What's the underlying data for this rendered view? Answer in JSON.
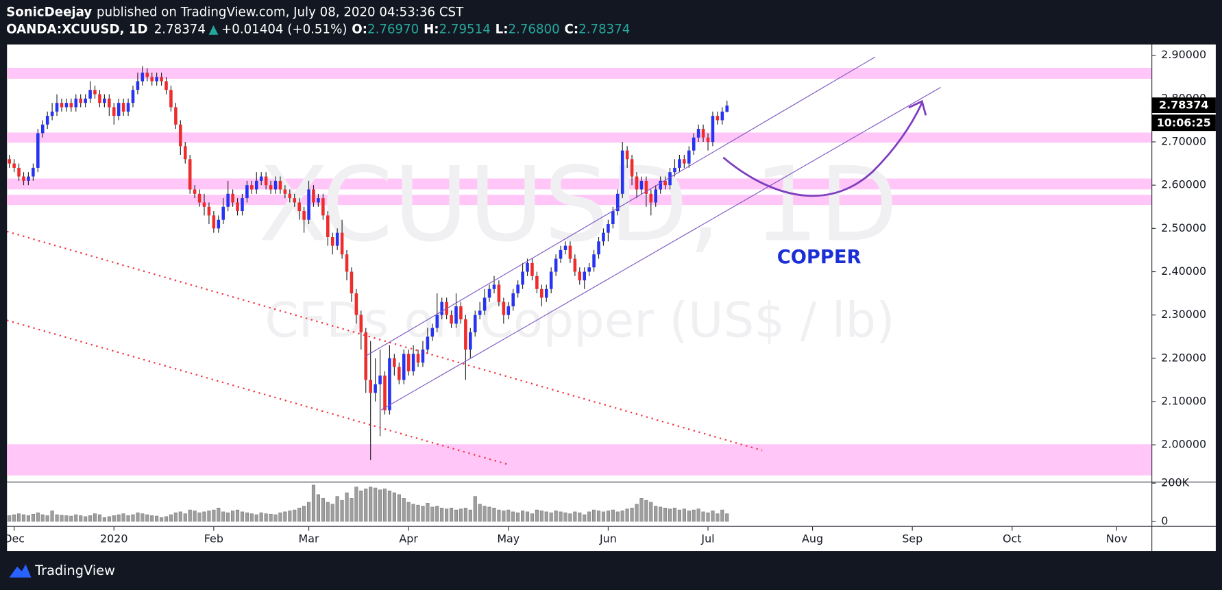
{
  "header": {
    "author": "SonicDeejay",
    "published": "published on TradingView.com, July 08, 2020 04:53:36 CST",
    "symbol": "OANDA:XCUUSD, 1D",
    "last": "2.78374",
    "arrow": "▲",
    "change": "+0.01404 (+0.51%)",
    "o_label": "O:",
    "o": "2.76970",
    "h_label": "H:",
    "h": "2.79514",
    "l_label": "L:",
    "l": "2.76800",
    "c_label": "C:",
    "c": "2.78374"
  },
  "chart_data": {
    "type": "candlestick",
    "watermark": "XCUUSD, 1D",
    "watermark_subtitle": "CFDs on Copper (US$ / lb)",
    "annotation": "COPPER",
    "countdown": "10:06:25",
    "up_color": "#2633f0",
    "down_color": "#ee2c2c",
    "volume_color": "#9e9e9e",
    "open": [
      2.66,
      2.65,
      2.64,
      2.62,
      2.61,
      2.62,
      2.64,
      2.72,
      2.74,
      2.76,
      2.77,
      2.79,
      2.78,
      2.79,
      2.78,
      2.8,
      2.79,
      2.8,
      2.82,
      2.81,
      2.79,
      2.8,
      2.78,
      2.76,
      2.79,
      2.77,
      2.79,
      2.82,
      2.84,
      2.86,
      2.85,
      2.84,
      2.85,
      2.84,
      2.82,
      2.78,
      2.74,
      2.69,
      2.66,
      2.59,
      2.58,
      2.56,
      2.55,
      2.53,
      2.5,
      2.52,
      2.55,
      2.58,
      2.56,
      2.54,
      2.57,
      2.6,
      2.59,
      2.61,
      2.62,
      2.6,
      2.59,
      2.61,
      2.59,
      2.58,
      2.57,
      2.56,
      2.54,
      2.52,
      2.59,
      2.56,
      2.57,
      2.53,
      2.48,
      2.46,
      2.49,
      2.44,
      2.4,
      2.35,
      2.3,
      2.26,
      2.15,
      2.12,
      2.14,
      2.16,
      2.08,
      2.2,
      2.18,
      2.15,
      2.21,
      2.17,
      2.21,
      2.19,
      2.22,
      2.25,
      2.27,
      2.3,
      2.33,
      2.3,
      2.28,
      2.32,
      2.29,
      2.22,
      2.26,
      2.3,
      2.31,
      2.34,
      2.36,
      2.37,
      2.33,
      2.3,
      2.32,
      2.35,
      2.37,
      2.4,
      2.42,
      2.39,
      2.36,
      2.34,
      2.36,
      2.4,
      2.43,
      2.45,
      2.46,
      2.43,
      2.4,
      2.38,
      2.4,
      2.41,
      2.44,
      2.47,
      2.49,
      2.51,
      2.54,
      2.58,
      2.68,
      2.66,
      2.62,
      2.59,
      2.61,
      2.58,
      2.56,
      2.59,
      2.61,
      2.6,
      2.63,
      2.64,
      2.66,
      2.65,
      2.68,
      2.71,
      2.73,
      2.71,
      2.7,
      2.76,
      2.75,
      2.7697
    ],
    "high": [
      2.67,
      2.66,
      2.65,
      2.63,
      2.63,
      2.65,
      2.73,
      2.75,
      2.77,
      2.79,
      2.81,
      2.8,
      2.8,
      2.8,
      2.81,
      2.81,
      2.81,
      2.84,
      2.83,
      2.82,
      2.81,
      2.81,
      2.79,
      2.8,
      2.8,
      2.8,
      2.83,
      2.86,
      2.875,
      2.87,
      2.86,
      2.86,
      2.86,
      2.85,
      2.83,
      2.79,
      2.75,
      2.7,
      2.67,
      2.6,
      2.59,
      2.58,
      2.56,
      2.54,
      2.53,
      2.57,
      2.61,
      2.59,
      2.57,
      2.58,
      2.61,
      2.61,
      2.63,
      2.63,
      2.63,
      2.61,
      2.62,
      2.62,
      2.6,
      2.59,
      2.58,
      2.57,
      2.55,
      2.61,
      2.6,
      2.58,
      2.58,
      2.54,
      2.49,
      2.5,
      2.52,
      2.45,
      2.41,
      2.36,
      2.31,
      2.27,
      2.24,
      2.2,
      2.22,
      2.17,
      2.23,
      2.21,
      2.19,
      2.22,
      2.22,
      2.23,
      2.22,
      2.24,
      2.27,
      2.28,
      2.35,
      2.34,
      2.34,
      2.31,
      2.35,
      2.33,
      2.3,
      2.27,
      2.31,
      2.33,
      2.36,
      2.37,
      2.39,
      2.38,
      2.34,
      2.33,
      2.36,
      2.38,
      2.42,
      2.43,
      2.43,
      2.4,
      2.37,
      2.37,
      2.41,
      2.44,
      2.46,
      2.47,
      2.47,
      2.44,
      2.41,
      2.41,
      2.42,
      2.45,
      2.48,
      2.5,
      2.52,
      2.55,
      2.59,
      2.7,
      2.69,
      2.67,
      2.63,
      2.62,
      2.62,
      2.59,
      2.6,
      2.62,
      2.62,
      2.64,
      2.66,
      2.67,
      2.67,
      2.69,
      2.72,
      2.74,
      2.74,
      2.72,
      2.77,
      2.77,
      2.78,
      2.79514
    ],
    "low": [
      2.64,
      2.63,
      2.61,
      2.6,
      2.6,
      2.61,
      2.63,
      2.71,
      2.73,
      2.75,
      2.76,
      2.77,
      2.77,
      2.77,
      2.77,
      2.78,
      2.78,
      2.79,
      2.8,
      2.78,
      2.78,
      2.76,
      2.74,
      2.75,
      2.76,
      2.76,
      2.78,
      2.81,
      2.83,
      2.84,
      2.83,
      2.83,
      2.83,
      2.81,
      2.77,
      2.73,
      2.67,
      2.65,
      2.58,
      2.57,
      2.55,
      2.53,
      2.51,
      2.49,
      2.49,
      2.51,
      2.54,
      2.55,
      2.53,
      2.53,
      2.56,
      2.58,
      2.58,
      2.6,
      2.59,
      2.58,
      2.58,
      2.58,
      2.57,
      2.56,
      2.55,
      2.52,
      2.49,
      2.51,
      2.55,
      2.55,
      2.52,
      2.46,
      2.44,
      2.45,
      2.43,
      2.38,
      2.33,
      2.28,
      2.22,
      2.12,
      1.965,
      2.1,
      2.02,
      2.07,
      2.07,
      2.16,
      2.14,
      2.14,
      2.16,
      2.16,
      2.18,
      2.18,
      2.21,
      2.24,
      2.26,
      2.29,
      2.29,
      2.27,
      2.27,
      2.28,
      2.15,
      2.2,
      2.25,
      2.29,
      2.3,
      2.33,
      2.35,
      2.32,
      2.28,
      2.29,
      2.31,
      2.34,
      2.36,
      2.39,
      2.38,
      2.35,
      2.32,
      2.33,
      2.35,
      2.39,
      2.42,
      2.44,
      2.42,
      2.39,
      2.37,
      2.36,
      2.39,
      2.4,
      2.43,
      2.46,
      2.47,
      2.5,
      2.53,
      2.57,
      2.64,
      2.6,
      2.57,
      2.58,
      2.55,
      2.53,
      2.55,
      2.58,
      2.59,
      2.59,
      2.62,
      2.63,
      2.64,
      2.64,
      2.67,
      2.7,
      2.7,
      2.68,
      2.69,
      2.74,
      2.74,
      2.768
    ],
    "close": [
      2.65,
      2.64,
      2.62,
      2.61,
      2.62,
      2.64,
      2.72,
      2.74,
      2.76,
      2.77,
      2.79,
      2.78,
      2.79,
      2.78,
      2.8,
      2.79,
      2.8,
      2.82,
      2.81,
      2.79,
      2.8,
      2.78,
      2.76,
      2.79,
      2.77,
      2.79,
      2.82,
      2.84,
      2.86,
      2.85,
      2.84,
      2.85,
      2.84,
      2.82,
      2.78,
      2.74,
      2.69,
      2.66,
      2.59,
      2.58,
      2.56,
      2.55,
      2.53,
      2.5,
      2.52,
      2.55,
      2.58,
      2.56,
      2.54,
      2.57,
      2.6,
      2.59,
      2.61,
      2.62,
      2.6,
      2.59,
      2.61,
      2.59,
      2.58,
      2.57,
      2.56,
      2.54,
      2.52,
      2.59,
      2.56,
      2.57,
      2.53,
      2.48,
      2.46,
      2.49,
      2.44,
      2.4,
      2.35,
      2.3,
      2.26,
      2.15,
      2.12,
      2.14,
      2.16,
      2.08,
      2.2,
      2.18,
      2.15,
      2.21,
      2.17,
      2.21,
      2.19,
      2.22,
      2.25,
      2.27,
      2.3,
      2.33,
      2.3,
      2.28,
      2.32,
      2.29,
      2.22,
      2.26,
      2.3,
      2.31,
      2.34,
      2.36,
      2.37,
      2.33,
      2.3,
      2.32,
      2.35,
      2.37,
      2.4,
      2.42,
      2.39,
      2.36,
      2.34,
      2.36,
      2.4,
      2.43,
      2.45,
      2.46,
      2.43,
      2.4,
      2.38,
      2.4,
      2.41,
      2.44,
      2.47,
      2.49,
      2.51,
      2.54,
      2.58,
      2.68,
      2.66,
      2.62,
      2.59,
      2.61,
      2.58,
      2.56,
      2.59,
      2.61,
      2.6,
      2.63,
      2.64,
      2.66,
      2.65,
      2.68,
      2.71,
      2.73,
      2.71,
      2.7,
      2.76,
      2.75,
      2.77,
      2.78374
    ],
    "volume": [
      30000,
      35000,
      40000,
      35000,
      30000,
      38000,
      45000,
      35000,
      30000,
      55000,
      35000,
      32000,
      30000,
      28000,
      35000,
      30000,
      25000,
      30000,
      40000,
      35000,
      20000,
      25000,
      30000,
      35000,
      40000,
      30000,
      35000,
      45000,
      40000,
      35000,
      30000,
      28000,
      20000,
      25000,
      35000,
      45000,
      50000,
      40000,
      60000,
      55000,
      45000,
      50000,
      55000,
      60000,
      70000,
      50000,
      45000,
      55000,
      60000,
      50000,
      45000,
      40000,
      35000,
      45000,
      40000,
      38000,
      35000,
      45000,
      50000,
      55000,
      60000,
      70000,
      80000,
      100000,
      190000,
      140000,
      120000,
      100000,
      90000,
      130000,
      110000,
      150000,
      120000,
      180000,
      160000,
      170000,
      180000,
      175000,
      165000,
      170000,
      160000,
      150000,
      140000,
      120000,
      100000,
      90000,
      85000,
      80000,
      95000,
      75000,
      80000,
      70000,
      65000,
      70000,
      60000,
      65000,
      70000,
      60000,
      130000,
      90000,
      80000,
      75000,
      70000,
      60000,
      55000,
      60000,
      50000,
      45000,
      55000,
      50000,
      40000,
      60000,
      55000,
      50000,
      45000,
      55000,
      50000,
      45000,
      40000,
      50000,
      45000,
      35000,
      50000,
      60000,
      55000,
      50000,
      55000,
      60000,
      50000,
      55000,
      65000,
      70000,
      90000,
      120000,
      110000,
      100000,
      80000,
      75000,
      70000,
      65000,
      70000,
      60000,
      65000,
      55000,
      60000,
      65000,
      50000,
      45000,
      55000,
      40000,
      60000,
      40000
    ],
    "xlim": [
      -0.5,
      240.4
    ],
    "xticks": [
      {
        "value": 1,
        "label": "Dec"
      },
      {
        "value": 22,
        "label": "2020"
      },
      {
        "value": 43,
        "label": "Feb"
      },
      {
        "value": 63,
        "label": "Mar"
      },
      {
        "value": 84,
        "label": "Apr"
      },
      {
        "value": 105,
        "label": "May"
      },
      {
        "value": 126,
        "label": "Jun"
      },
      {
        "value": 147,
        "label": "Jul"
      },
      {
        "value": 169,
        "label": "Aug"
      },
      {
        "value": 190,
        "label": "Sep"
      },
      {
        "value": 211,
        "label": "Oct"
      },
      {
        "value": 233,
        "label": "Nov"
      }
    ],
    "ylim": [
      1.915,
      2.925
    ],
    "yticks": [
      {
        "value": 2.0,
        "label": "2.00000"
      },
      {
        "value": 2.1,
        "label": "2.10000"
      },
      {
        "value": 2.2,
        "label": "2.20000"
      },
      {
        "value": 2.3,
        "label": "2.30000"
      },
      {
        "value": 2.4,
        "label": "2.40000"
      },
      {
        "value": 2.5,
        "label": "2.50000"
      },
      {
        "value": 2.6,
        "label": "2.60000"
      },
      {
        "value": 2.7,
        "label": "2.70000"
      },
      {
        "value": 2.8,
        "label": "2.80000"
      },
      {
        "value": 2.9,
        "label": "2.90000"
      }
    ],
    "volume_lim": [
      -4000,
      204000
    ],
    "volume_ticks": [
      0,
      {
        "value": 200000,
        "label": "200K"
      }
    ]
  },
  "footer": {
    "brand": "TradingView"
  }
}
